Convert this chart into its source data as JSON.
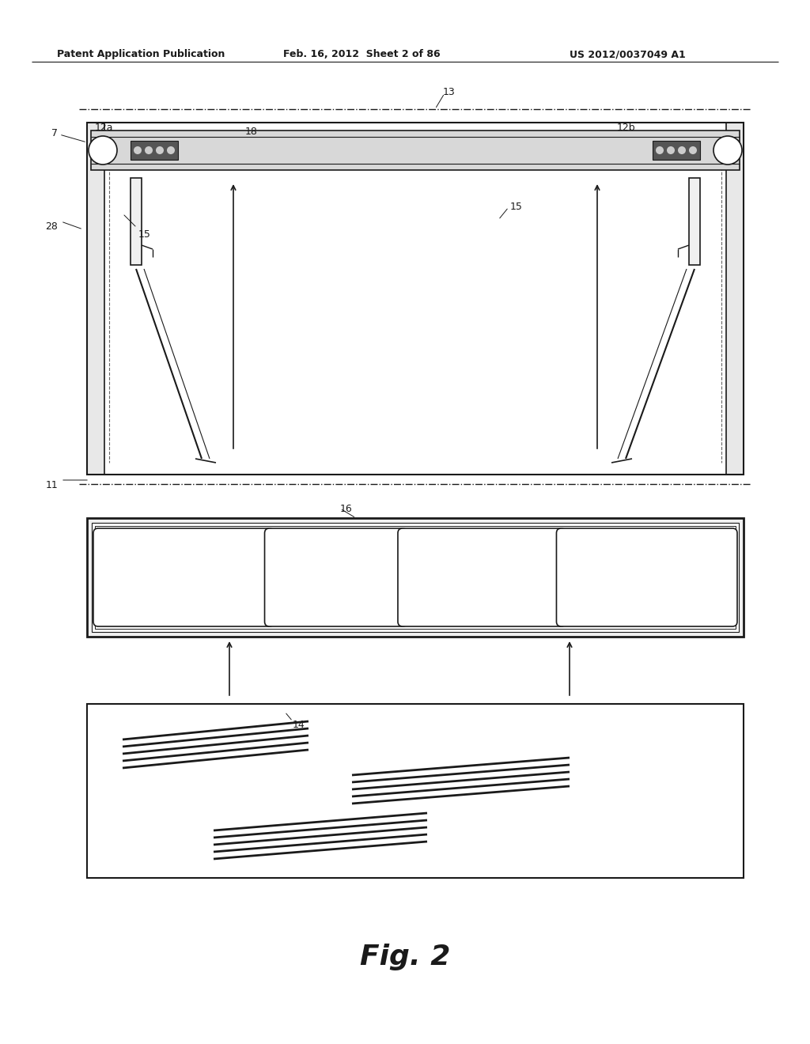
{
  "bg_color": "#ffffff",
  "header_text": "Patent Application Publication",
  "header_date": "Feb. 16, 2012  Sheet 2 of 86",
  "header_patent": "US 2012/0037049 A1",
  "fig_label": "Fig. 2",
  "color_main": "#1a1a1a",
  "color_gray": "#888888",
  "color_light": "#cccccc"
}
